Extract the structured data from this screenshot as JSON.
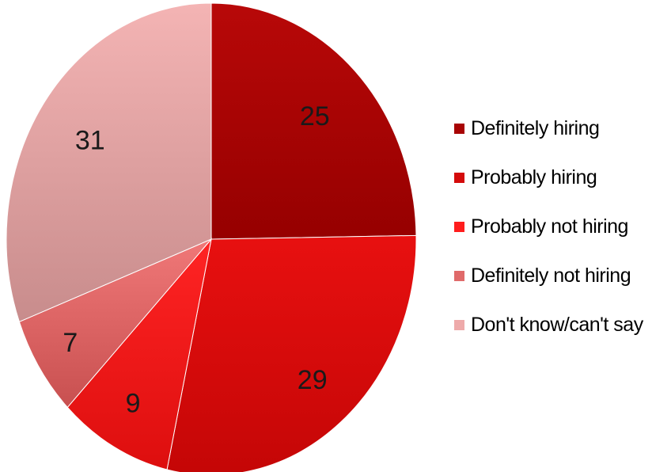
{
  "chart_data": {
    "type": "pie",
    "title": "",
    "categories": [
      "Definitely hiring",
      "Probably hiring",
      "Probably not hiring",
      "Definitely not hiring",
      "Don't know/can't say"
    ],
    "values": [
      25,
      29,
      9,
      7,
      31
    ],
    "data_labels": [
      "25",
      "29",
      "9",
      "7",
      "31"
    ],
    "colors": [
      "#a80404",
      "#d40b0b",
      "#ff1d1d",
      "#e06a6a",
      "#eeaaaa"
    ],
    "start_angle_deg": 0,
    "direction": "clockwise",
    "legend_position": "right"
  }
}
